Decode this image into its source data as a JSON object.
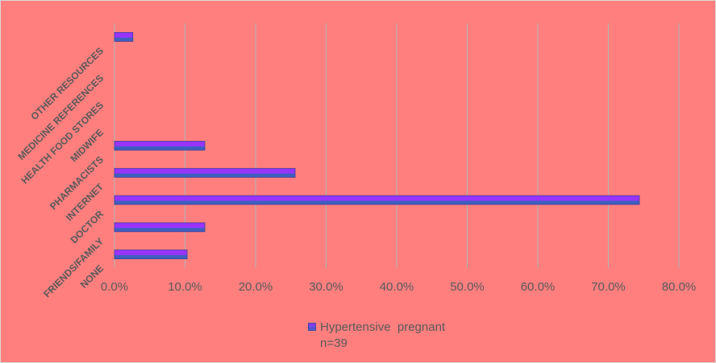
{
  "colors": {
    "background": "#ff7f7f",
    "bar_top": "#9933ff",
    "bar_bottom": "#3f5fbf",
    "gridline": "#b3b3b3",
    "text": "#595959"
  },
  "chart_data": {
    "type": "bar",
    "orientation": "horizontal",
    "categories": [
      "NONE",
      "FRIENDS/FAMILY",
      "DOCTOR",
      "INTERNET",
      "PHARMACISTS",
      "MIDWIFE",
      "HEALTH FOOD STORES",
      "MEDICINE REFERENCES",
      "OTHER RESOURCES"
    ],
    "series": [
      {
        "name": "Hypertensive  pregnant\nn=39",
        "values": [
          10.3,
          12.8,
          74.4,
          25.6,
          12.8,
          0,
          0,
          0,
          2.6
        ]
      }
    ],
    "xlim": [
      0,
      80
    ],
    "xticks": [
      "0.0%",
      "10.0%",
      "20.0%",
      "30.0%",
      "40.0%",
      "50.0%",
      "60.0%",
      "70.0%",
      "80.0%"
    ],
    "grid": true,
    "legend": "bottom"
  }
}
